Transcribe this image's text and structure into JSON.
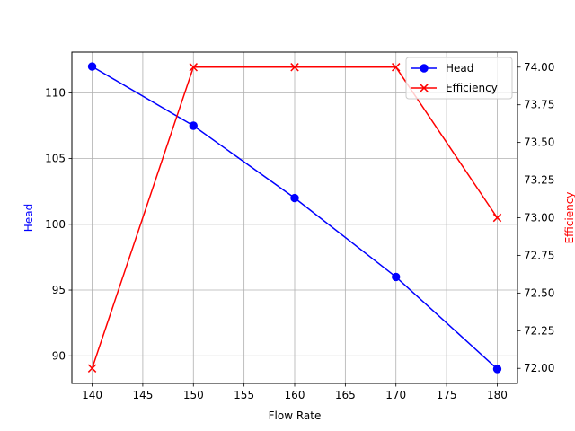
{
  "chart_data": {
    "type": "line",
    "title": "",
    "xlabel": "Flow Rate",
    "ylabel_left": "Head",
    "ylabel_right": "Efficiency",
    "x": [
      140,
      150,
      160,
      170,
      180
    ],
    "xlim": [
      138,
      182
    ],
    "ylim_left": [
      87.9,
      113.1
    ],
    "ylim_right": [
      71.9,
      74.1
    ],
    "x_ticks": [
      140,
      145,
      150,
      155,
      160,
      165,
      170,
      175,
      180
    ],
    "y_left_ticks": [
      90,
      95,
      100,
      105,
      110
    ],
    "y_right_ticks": [
      "72.00",
      "72.25",
      "72.50",
      "72.75",
      "73.00",
      "73.25",
      "73.50",
      "73.75",
      "74.00"
    ],
    "grid": true,
    "legend_position": "top-right",
    "series": [
      {
        "name": "Head",
        "axis": "left",
        "color": "#0000ff",
        "marker": "circle",
        "values": [
          112,
          107.5,
          102,
          96,
          89
        ]
      },
      {
        "name": "Efficiency",
        "axis": "right",
        "color": "#ff0000",
        "marker": "x",
        "values": [
          72,
          74,
          74,
          74,
          73
        ]
      }
    ]
  }
}
